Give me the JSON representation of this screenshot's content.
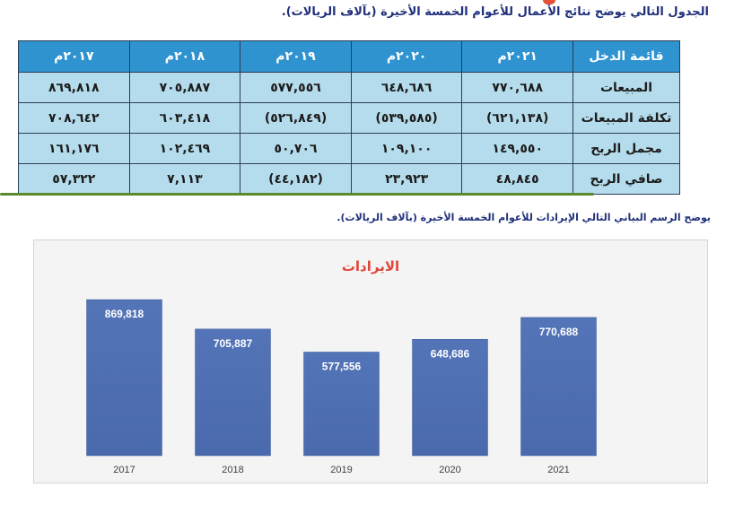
{
  "table_caption": "الجدول التالي يوضح نتائج الأعمال للأعوام الخمسة الأخيرة (بآلاف الريالات).",
  "table": {
    "corner": "قائمة الدخل",
    "years": [
      "٢٠٢١م",
      "٢٠٢٠م",
      "٢٠١٩م",
      "٢٠١٨م",
      "٢٠١٧م"
    ],
    "rows": [
      {
        "label": "المبيعات",
        "values": [
          "٧٧٠,٦٨٨",
          "٦٤٨,٦٨٦",
          "٥٧٧,٥٥٦",
          "٧٠٥,٨٨٧",
          "٨٦٩,٨١٨"
        ]
      },
      {
        "label": "تكلفة المبيعات",
        "values": [
          "(٦٢١,١٣٨)",
          "(٥٣٩,٥٨٥)",
          "(٥٢٦,٨٤٩)",
          "٦٠٣,٤١٨",
          "٧٠٨,٦٤٢"
        ]
      },
      {
        "label": "مجمل الربح",
        "values": [
          "١٤٩,٥٥٠",
          "١٠٩,١٠٠",
          "٥٠,٧٠٦",
          "١٠٢,٤٦٩",
          "١٦١,١٧٦"
        ]
      },
      {
        "label": "صافي الربح",
        "values": [
          "٤٨,٨٤٥",
          "٢٣,٩٢٣",
          "(٤٤,١٨٢)",
          "٧,١١٣",
          "٥٧,٣٢٢"
        ]
      }
    ]
  },
  "chart_caption": "يوضح الرسم البياني التالي الإيرادات للأعوام الخمسة الأخيرة (بآلاف الريالات).",
  "chart_data": {
    "type": "bar",
    "title": "الايرادات",
    "categories": [
      "2017",
      "2018",
      "2019",
      "2020",
      "2021"
    ],
    "values": [
      869818,
      705887,
      577556,
      648686,
      770688
    ],
    "data_labels": [
      "869,818",
      "705,887",
      "577,556",
      "648,686",
      "770,688"
    ],
    "ylim": [
      0,
      1000000
    ],
    "grid": false,
    "legend": "none",
    "bar_color": "#4a6aad",
    "title_color": "#e0463a"
  }
}
